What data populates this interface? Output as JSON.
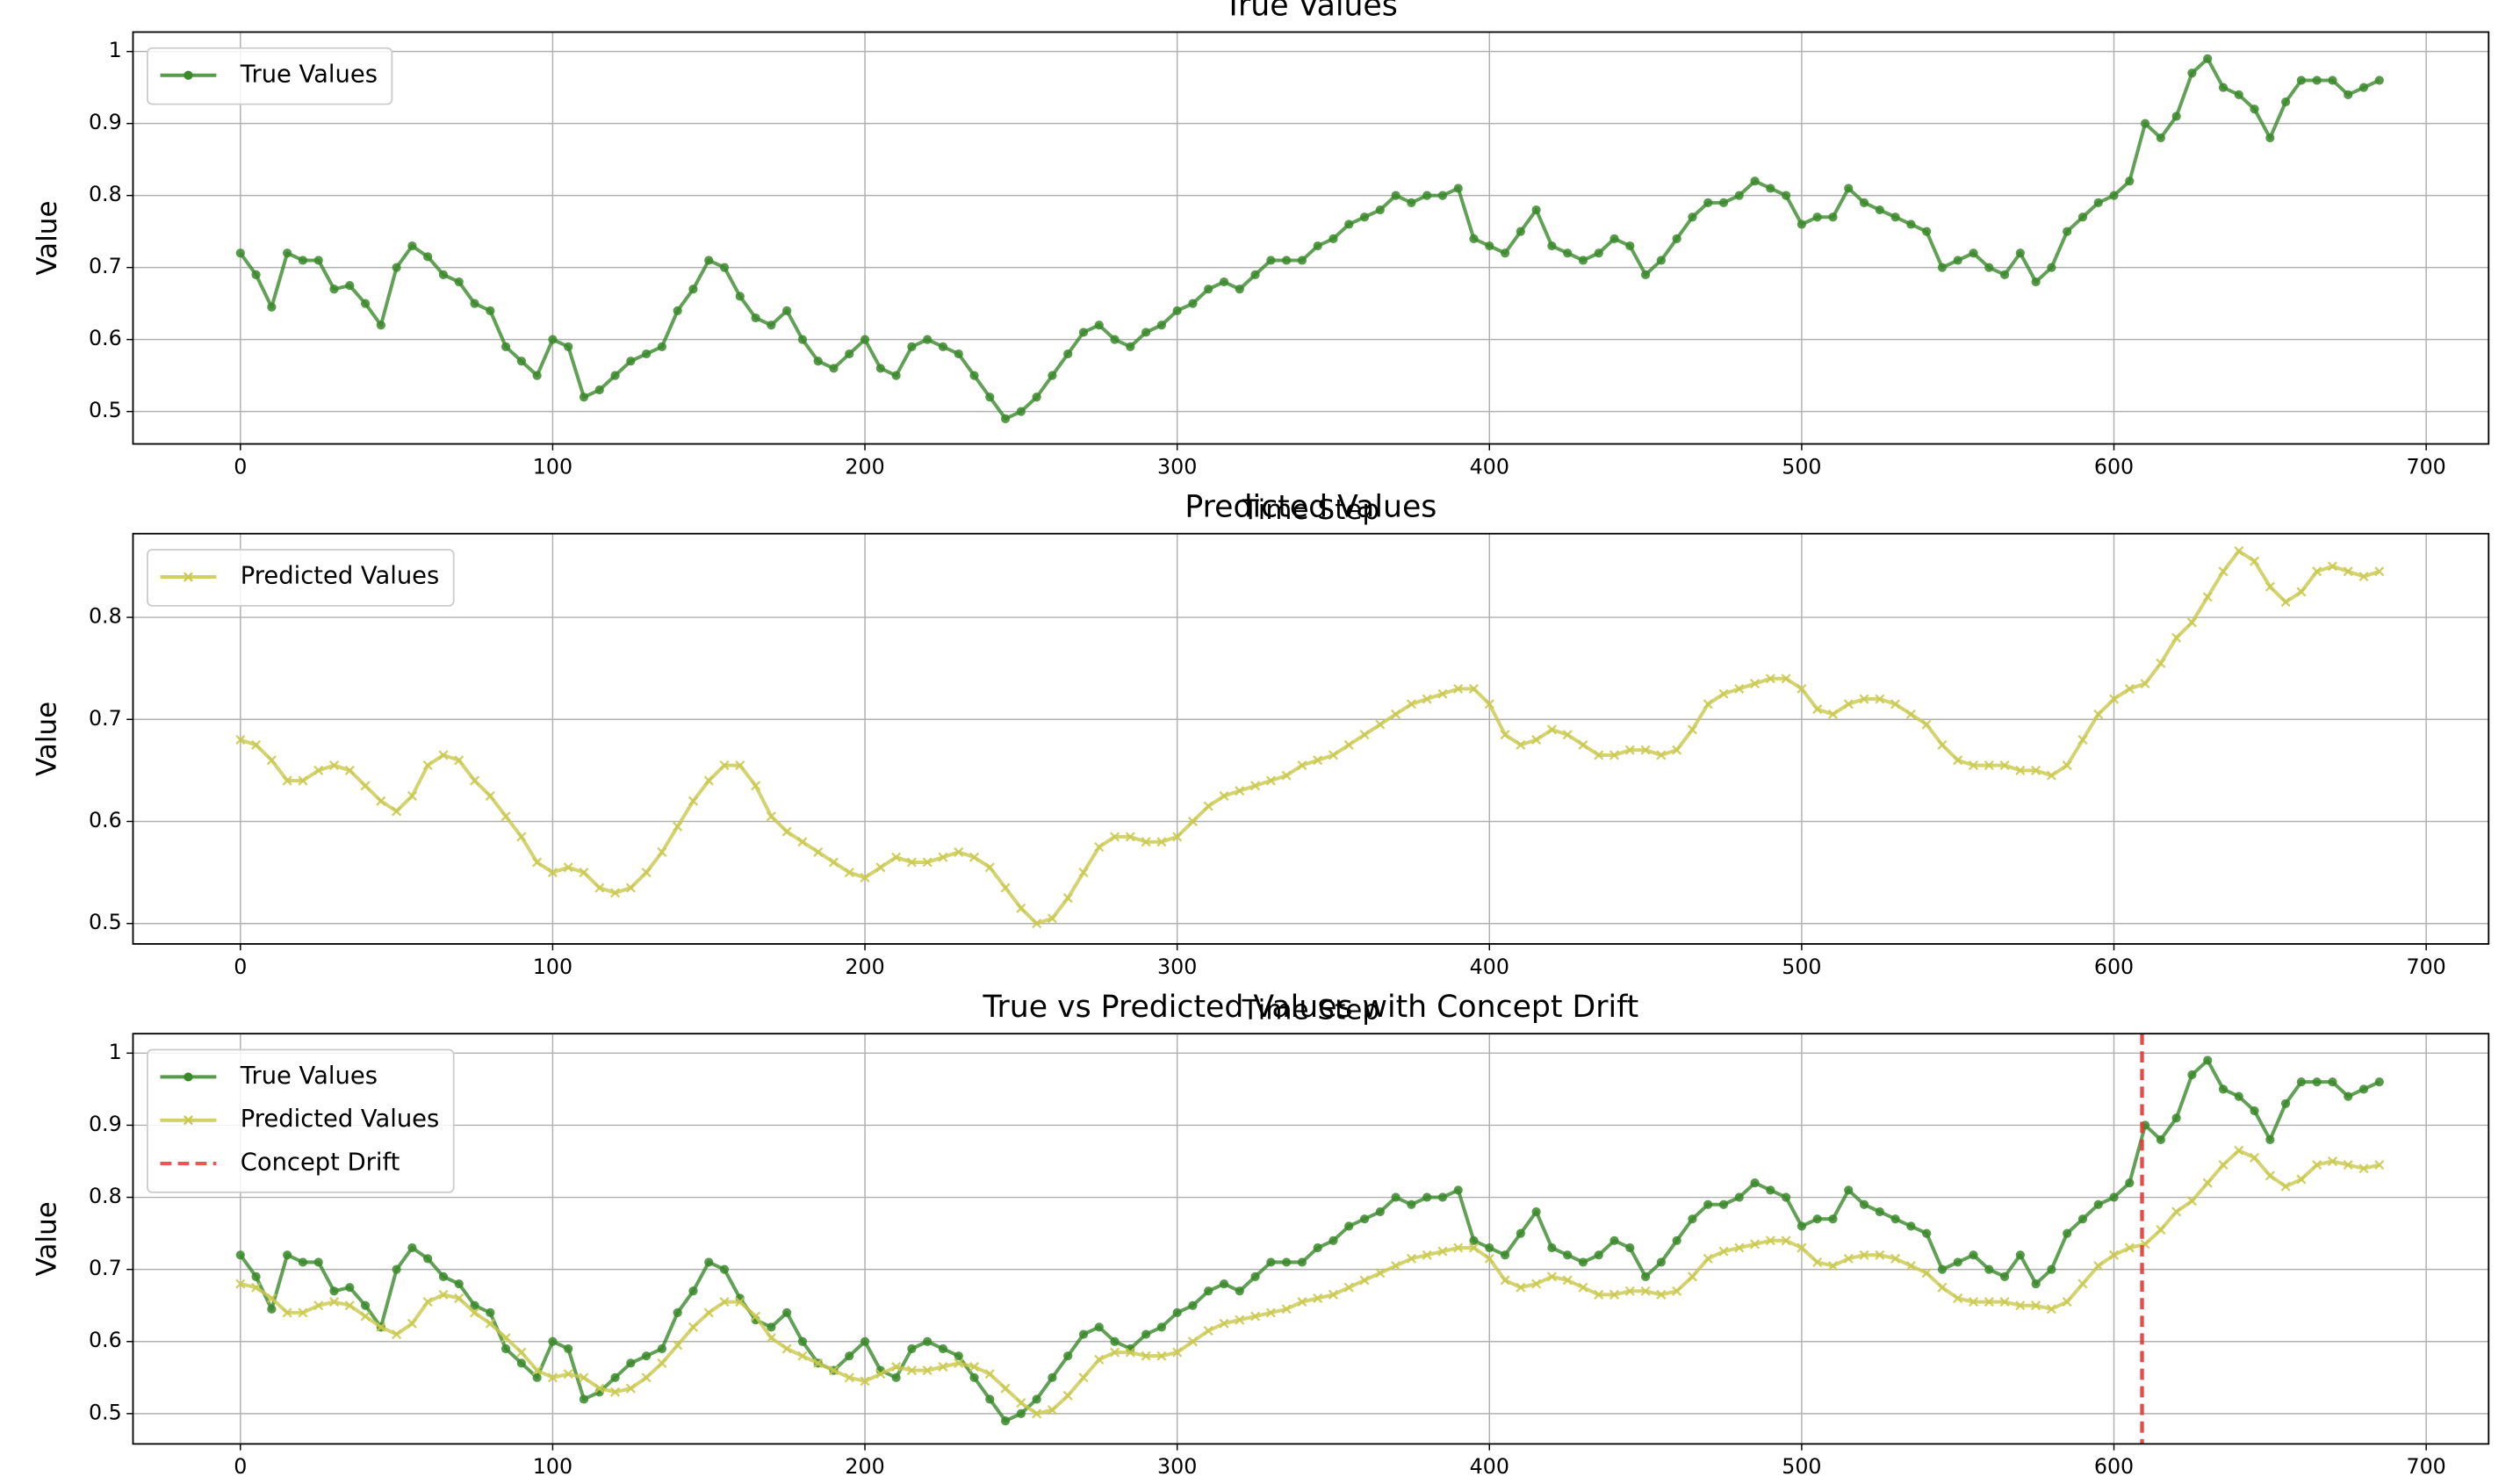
{
  "chart_data": [
    {
      "type": "line",
      "title": "True Values",
      "xlabel": "Time Step",
      "ylabel": "Value",
      "grid": true,
      "legend": "upper left",
      "xlim": [
        -34.4,
        720
      ],
      "ylim": [
        0.455,
        1.027
      ],
      "xticks": [
        0,
        100,
        200,
        300,
        400,
        500,
        600,
        700
      ],
      "yticks": [
        0.5,
        0.6,
        0.7,
        0.8,
        0.9,
        1.0
      ],
      "x": [
        0,
        5,
        10,
        15,
        20,
        25,
        30,
        35,
        40,
        45,
        50,
        55,
        60,
        65,
        70,
        75,
        80,
        85,
        90,
        95,
        100,
        105,
        110,
        115,
        120,
        125,
        130,
        135,
        140,
        145,
        150,
        155,
        160,
        165,
        170,
        175,
        180,
        185,
        190,
        195,
        200,
        205,
        210,
        215,
        220,
        225,
        230,
        235,
        240,
        245,
        250,
        255,
        260,
        265,
        270,
        275,
        280,
        285,
        290,
        295,
        300,
        305,
        310,
        315,
        320,
        325,
        330,
        335,
        340,
        345,
        350,
        355,
        360,
        365,
        370,
        375,
        380,
        385,
        390,
        395,
        400,
        405,
        410,
        415,
        420,
        425,
        430,
        435,
        440,
        445,
        450,
        455,
        460,
        465,
        470,
        475,
        480,
        485,
        490,
        495,
        500,
        505,
        510,
        515,
        520,
        525,
        530,
        535,
        540,
        545,
        550,
        555,
        560,
        565,
        570,
        575,
        580,
        585,
        590,
        595,
        600,
        605,
        610,
        615,
        620,
        625,
        630,
        635,
        640,
        645,
        650,
        655,
        660,
        665,
        670,
        675,
        680,
        685
      ],
      "series": [
        {
          "name": "True Values",
          "color": "#3a8a2a",
          "marker": "o",
          "values": [
            0.72,
            0.69,
            0.645,
            0.72,
            0.71,
            0.71,
            0.67,
            0.675,
            0.65,
            0.62,
            0.7,
            0.73,
            0.715,
            0.69,
            0.68,
            0.65,
            0.64,
            0.59,
            0.57,
            0.55,
            0.6,
            0.59,
            0.52,
            0.53,
            0.55,
            0.57,
            0.58,
            0.59,
            0.64,
            0.67,
            0.71,
            0.7,
            0.66,
            0.63,
            0.62,
            0.64,
            0.6,
            0.57,
            0.56,
            0.58,
            0.6,
            0.56,
            0.55,
            0.59,
            0.6,
            0.59,
            0.58,
            0.55,
            0.52,
            0.49,
            0.5,
            0.52,
            0.55,
            0.58,
            0.61,
            0.62,
            0.6,
            0.59,
            0.61,
            0.62,
            0.64,
            0.65,
            0.67,
            0.68,
            0.67,
            0.69,
            0.71,
            0.71,
            0.71,
            0.73,
            0.74,
            0.76,
            0.77,
            0.78,
            0.8,
            0.79,
            0.8,
            0.8,
            0.81,
            0.74,
            0.73,
            0.72,
            0.75,
            0.78,
            0.73,
            0.72,
            0.71,
            0.72,
            0.74,
            0.73,
            0.69,
            0.71,
            0.74,
            0.77,
            0.79,
            0.79,
            0.8,
            0.82,
            0.81,
            0.8,
            0.76,
            0.77,
            0.77,
            0.81,
            0.79,
            0.78,
            0.77,
            0.76,
            0.75,
            0.7,
            0.71,
            0.72,
            0.7,
            0.69,
            0.72,
            0.68,
            0.7,
            0.75,
            0.77,
            0.79,
            0.8,
            0.82,
            0.9,
            0.88,
            0.91,
            0.97,
            0.99,
            0.95,
            0.94,
            0.92,
            0.88,
            0.93,
            0.96,
            0.96,
            0.96,
            0.94,
            0.95,
            0.96
          ]
        }
      ]
    },
    {
      "type": "line",
      "title": "Predicted Values",
      "xlabel": "Time Step",
      "ylabel": "Value",
      "grid": true,
      "legend": "upper left",
      "xlim": [
        -34.4,
        720
      ],
      "ylim": [
        0.48,
        0.882
      ],
      "xticks": [
        0,
        100,
        200,
        300,
        400,
        500,
        600,
        700
      ],
      "yticks": [
        0.5,
        0.6,
        0.7,
        0.8
      ],
      "x": [
        0,
        5,
        10,
        15,
        20,
        25,
        30,
        35,
        40,
        45,
        50,
        55,
        60,
        65,
        70,
        75,
        80,
        85,
        90,
        95,
        100,
        105,
        110,
        115,
        120,
        125,
        130,
        135,
        140,
        145,
        150,
        155,
        160,
        165,
        170,
        175,
        180,
        185,
        190,
        195,
        200,
        205,
        210,
        215,
        220,
        225,
        230,
        235,
        240,
        245,
        250,
        255,
        260,
        265,
        270,
        275,
        280,
        285,
        290,
        295,
        300,
        305,
        310,
        315,
        320,
        325,
        330,
        335,
        340,
        345,
        350,
        355,
        360,
        365,
        370,
        375,
        380,
        385,
        390,
        395,
        400,
        405,
        410,
        415,
        420,
        425,
        430,
        435,
        440,
        445,
        450,
        455,
        460,
        465,
        470,
        475,
        480,
        485,
        490,
        495,
        500,
        505,
        510,
        515,
        520,
        525,
        530,
        535,
        540,
        545,
        550,
        555,
        560,
        565,
        570,
        575,
        580,
        585,
        590,
        595,
        600,
        605,
        610,
        615,
        620,
        625,
        630,
        635,
        640,
        645,
        650,
        655,
        660,
        665,
        670,
        675,
        680,
        685
      ],
      "series": [
        {
          "name": "Predicted Values",
          "color": "#c9c84c",
          "marker": "x",
          "values": [
            0.68,
            0.675,
            0.66,
            0.64,
            0.64,
            0.65,
            0.655,
            0.65,
            0.635,
            0.62,
            0.61,
            0.625,
            0.655,
            0.665,
            0.66,
            0.64,
            0.625,
            0.605,
            0.585,
            0.56,
            0.55,
            0.555,
            0.55,
            0.535,
            0.53,
            0.535,
            0.55,
            0.57,
            0.595,
            0.62,
            0.64,
            0.655,
            0.655,
            0.635,
            0.605,
            0.59,
            0.58,
            0.57,
            0.56,
            0.55,
            0.545,
            0.555,
            0.565,
            0.56,
            0.56,
            0.565,
            0.57,
            0.565,
            0.555,
            0.535,
            0.515,
            0.5,
            0.505,
            0.525,
            0.55,
            0.575,
            0.585,
            0.585,
            0.58,
            0.58,
            0.585,
            0.6,
            0.615,
            0.625,
            0.63,
            0.635,
            0.64,
            0.645,
            0.655,
            0.66,
            0.665,
            0.675,
            0.685,
            0.695,
            0.705,
            0.715,
            0.72,
            0.725,
            0.73,
            0.73,
            0.715,
            0.685,
            0.675,
            0.68,
            0.69,
            0.685,
            0.675,
            0.665,
            0.665,
            0.67,
            0.67,
            0.665,
            0.67,
            0.69,
            0.715,
            0.725,
            0.73,
            0.735,
            0.74,
            0.74,
            0.73,
            0.71,
            0.705,
            0.715,
            0.72,
            0.72,
            0.715,
            0.705,
            0.695,
            0.675,
            0.66,
            0.655,
            0.655,
            0.655,
            0.65,
            0.65,
            0.645,
            0.655,
            0.68,
            0.705,
            0.72,
            0.73,
            0.735,
            0.755,
            0.78,
            0.795,
            0.82,
            0.845,
            0.865,
            0.855,
            0.83,
            0.815,
            0.825,
            0.845,
            0.85,
            0.845,
            0.84,
            0.845
          ]
        }
      ]
    },
    {
      "type": "line",
      "title": "True vs Predicted Values with Concept Drift",
      "ylabel": "Value",
      "grid": true,
      "legend": "upper left",
      "xlim": [
        -34.4,
        720
      ],
      "ylim": [
        0.458,
        1.027
      ],
      "xticks": [
        0,
        100,
        200,
        300,
        400,
        500,
        600,
        700
      ],
      "yticks": [
        0.5,
        0.6,
        0.7,
        0.8,
        0.9,
        1.0
      ],
      "x": [
        0,
        5,
        10,
        15,
        20,
        25,
        30,
        35,
        40,
        45,
        50,
        55,
        60,
        65,
        70,
        75,
        80,
        85,
        90,
        95,
        100,
        105,
        110,
        115,
        120,
        125,
        130,
        135,
        140,
        145,
        150,
        155,
        160,
        165,
        170,
        175,
        180,
        185,
        190,
        195,
        200,
        205,
        210,
        215,
        220,
        225,
        230,
        235,
        240,
        245,
        250,
        255,
        260,
        265,
        270,
        275,
        280,
        285,
        290,
        295,
        300,
        305,
        310,
        315,
        320,
        325,
        330,
        335,
        340,
        345,
        350,
        355,
        360,
        365,
        370,
        375,
        380,
        385,
        390,
        395,
        400,
        405,
        410,
        415,
        420,
        425,
        430,
        435,
        440,
        445,
        450,
        455,
        460,
        465,
        470,
        475,
        480,
        485,
        490,
        495,
        500,
        505,
        510,
        515,
        520,
        525,
        530,
        535,
        540,
        545,
        550,
        555,
        560,
        565,
        570,
        575,
        580,
        585,
        590,
        595,
        600,
        605,
        610,
        615,
        620,
        625,
        630,
        635,
        640,
        645,
        650,
        655,
        660,
        665,
        670,
        675,
        680,
        685
      ],
      "series": [
        {
          "name": "True Values",
          "color": "#3a8a2a",
          "marker": "o",
          "values": [
            0.72,
            0.69,
            0.645,
            0.72,
            0.71,
            0.71,
            0.67,
            0.675,
            0.65,
            0.62,
            0.7,
            0.73,
            0.715,
            0.69,
            0.68,
            0.65,
            0.64,
            0.59,
            0.57,
            0.55,
            0.6,
            0.59,
            0.52,
            0.53,
            0.55,
            0.57,
            0.58,
            0.59,
            0.64,
            0.67,
            0.71,
            0.7,
            0.66,
            0.63,
            0.62,
            0.64,
            0.6,
            0.57,
            0.56,
            0.58,
            0.6,
            0.56,
            0.55,
            0.59,
            0.6,
            0.59,
            0.58,
            0.55,
            0.52,
            0.49,
            0.5,
            0.52,
            0.55,
            0.58,
            0.61,
            0.62,
            0.6,
            0.59,
            0.61,
            0.62,
            0.64,
            0.65,
            0.67,
            0.68,
            0.67,
            0.69,
            0.71,
            0.71,
            0.71,
            0.73,
            0.74,
            0.76,
            0.77,
            0.78,
            0.8,
            0.79,
            0.8,
            0.8,
            0.81,
            0.74,
            0.73,
            0.72,
            0.75,
            0.78,
            0.73,
            0.72,
            0.71,
            0.72,
            0.74,
            0.73,
            0.69,
            0.71,
            0.74,
            0.77,
            0.79,
            0.79,
            0.8,
            0.82,
            0.81,
            0.8,
            0.76,
            0.77,
            0.77,
            0.81,
            0.79,
            0.78,
            0.77,
            0.76,
            0.75,
            0.7,
            0.71,
            0.72,
            0.7,
            0.69,
            0.72,
            0.68,
            0.7,
            0.75,
            0.77,
            0.79,
            0.8,
            0.82,
            0.9,
            0.88,
            0.91,
            0.97,
            0.99,
            0.95,
            0.94,
            0.92,
            0.88,
            0.93,
            0.96,
            0.96,
            0.96,
            0.94,
            0.95,
            0.96
          ]
        },
        {
          "name": "Predicted Values",
          "color": "#c9c84c",
          "marker": "x",
          "values": [
            0.68,
            0.675,
            0.66,
            0.64,
            0.64,
            0.65,
            0.655,
            0.65,
            0.635,
            0.62,
            0.61,
            0.625,
            0.655,
            0.665,
            0.66,
            0.64,
            0.625,
            0.605,
            0.585,
            0.56,
            0.55,
            0.555,
            0.55,
            0.535,
            0.53,
            0.535,
            0.55,
            0.57,
            0.595,
            0.62,
            0.64,
            0.655,
            0.655,
            0.635,
            0.605,
            0.59,
            0.58,
            0.57,
            0.56,
            0.55,
            0.545,
            0.555,
            0.565,
            0.56,
            0.56,
            0.565,
            0.57,
            0.565,
            0.555,
            0.535,
            0.515,
            0.5,
            0.505,
            0.525,
            0.55,
            0.575,
            0.585,
            0.585,
            0.58,
            0.58,
            0.585,
            0.6,
            0.615,
            0.625,
            0.63,
            0.635,
            0.64,
            0.645,
            0.655,
            0.66,
            0.665,
            0.675,
            0.685,
            0.695,
            0.705,
            0.715,
            0.72,
            0.725,
            0.73,
            0.73,
            0.715,
            0.685,
            0.675,
            0.68,
            0.69,
            0.685,
            0.675,
            0.665,
            0.665,
            0.67,
            0.67,
            0.665,
            0.67,
            0.69,
            0.715,
            0.725,
            0.73,
            0.735,
            0.74,
            0.74,
            0.73,
            0.71,
            0.705,
            0.715,
            0.72,
            0.72,
            0.715,
            0.705,
            0.695,
            0.675,
            0.66,
            0.655,
            0.655,
            0.655,
            0.65,
            0.65,
            0.645,
            0.655,
            0.68,
            0.705,
            0.72,
            0.73,
            0.735,
            0.755,
            0.78,
            0.795,
            0.82,
            0.845,
            0.865,
            0.855,
            0.83,
            0.815,
            0.825,
            0.845,
            0.85,
            0.845,
            0.84,
            0.845
          ]
        }
      ],
      "vlines": [
        {
          "name": "Concept Drift",
          "x": 609,
          "color": "#e53935",
          "dashed": true
        }
      ]
    }
  ]
}
